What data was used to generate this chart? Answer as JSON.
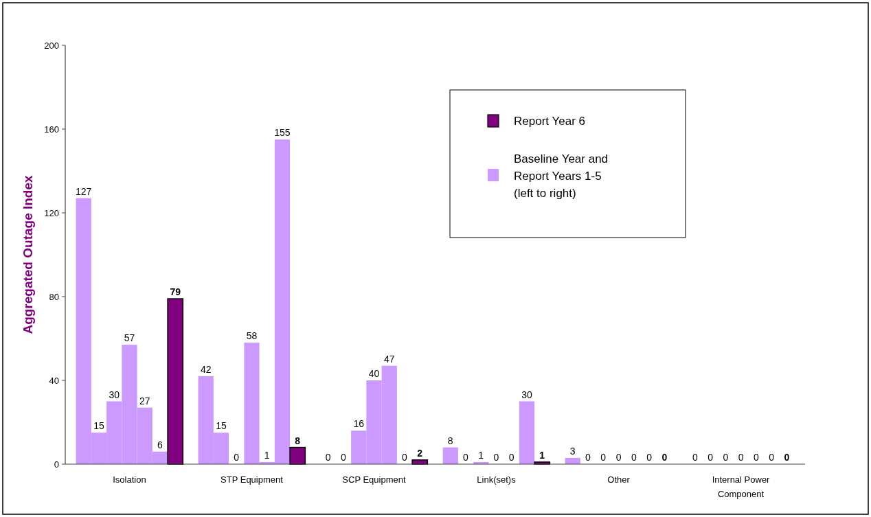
{
  "chart_data": {
    "type": "bar",
    "stacked": true,
    "ylabel": "Aggregated Outage Index",
    "categories": [
      null,
      null,
      null,
      "Isolation",
      null,
      null,
      null,
      null,
      null,
      null,
      null,
      "STP Equipment",
      null,
      null,
      null,
      null,
      null,
      null,
      null,
      "SCP Equipment",
      null,
      null,
      null,
      null,
      null,
      null,
      null,
      "Link(set)s",
      null,
      null,
      null,
      null,
      null,
      null,
      null,
      "Other",
      null,
      null,
      null,
      null,
      null,
      null,
      null,
      "Internal Power Component",
      null,
      null,
      null
    ],
    "series": [
      {
        "name": "Baseline Year and Report Years 1-5 (left to right)",
        "color": "#cc99ff",
        "values": [
          127,
          15,
          30,
          57,
          27,
          6,
          null,
          null,
          42,
          15,
          0,
          58,
          1,
          155,
          null,
          null,
          0,
          0,
          16,
          40,
          47,
          0,
          null,
          null,
          8,
          0,
          1,
          0,
          0,
          30,
          null,
          null,
          3,
          0,
          0,
          0,
          0,
          0,
          null,
          null,
          0,
          0,
          0,
          0,
          0,
          0,
          null
        ]
      },
      {
        "name": "Report Year 6",
        "color": "#800080",
        "values": [
          null,
          null,
          null,
          null,
          null,
          null,
          79,
          null,
          null,
          null,
          null,
          null,
          null,
          null,
          8,
          null,
          null,
          null,
          null,
          null,
          null,
          null,
          2,
          null,
          null,
          null,
          null,
          null,
          null,
          null,
          1,
          null,
          null,
          null,
          null,
          null,
          null,
          null,
          0,
          null,
          null,
          null,
          null,
          null,
          null,
          null,
          0
        ]
      }
    ],
    "ylim": [
      0,
      200
    ],
    "yticks": [
      0,
      40,
      80,
      120,
      160,
      200
    ],
    "data_labels": true,
    "legend": "top right"
  }
}
